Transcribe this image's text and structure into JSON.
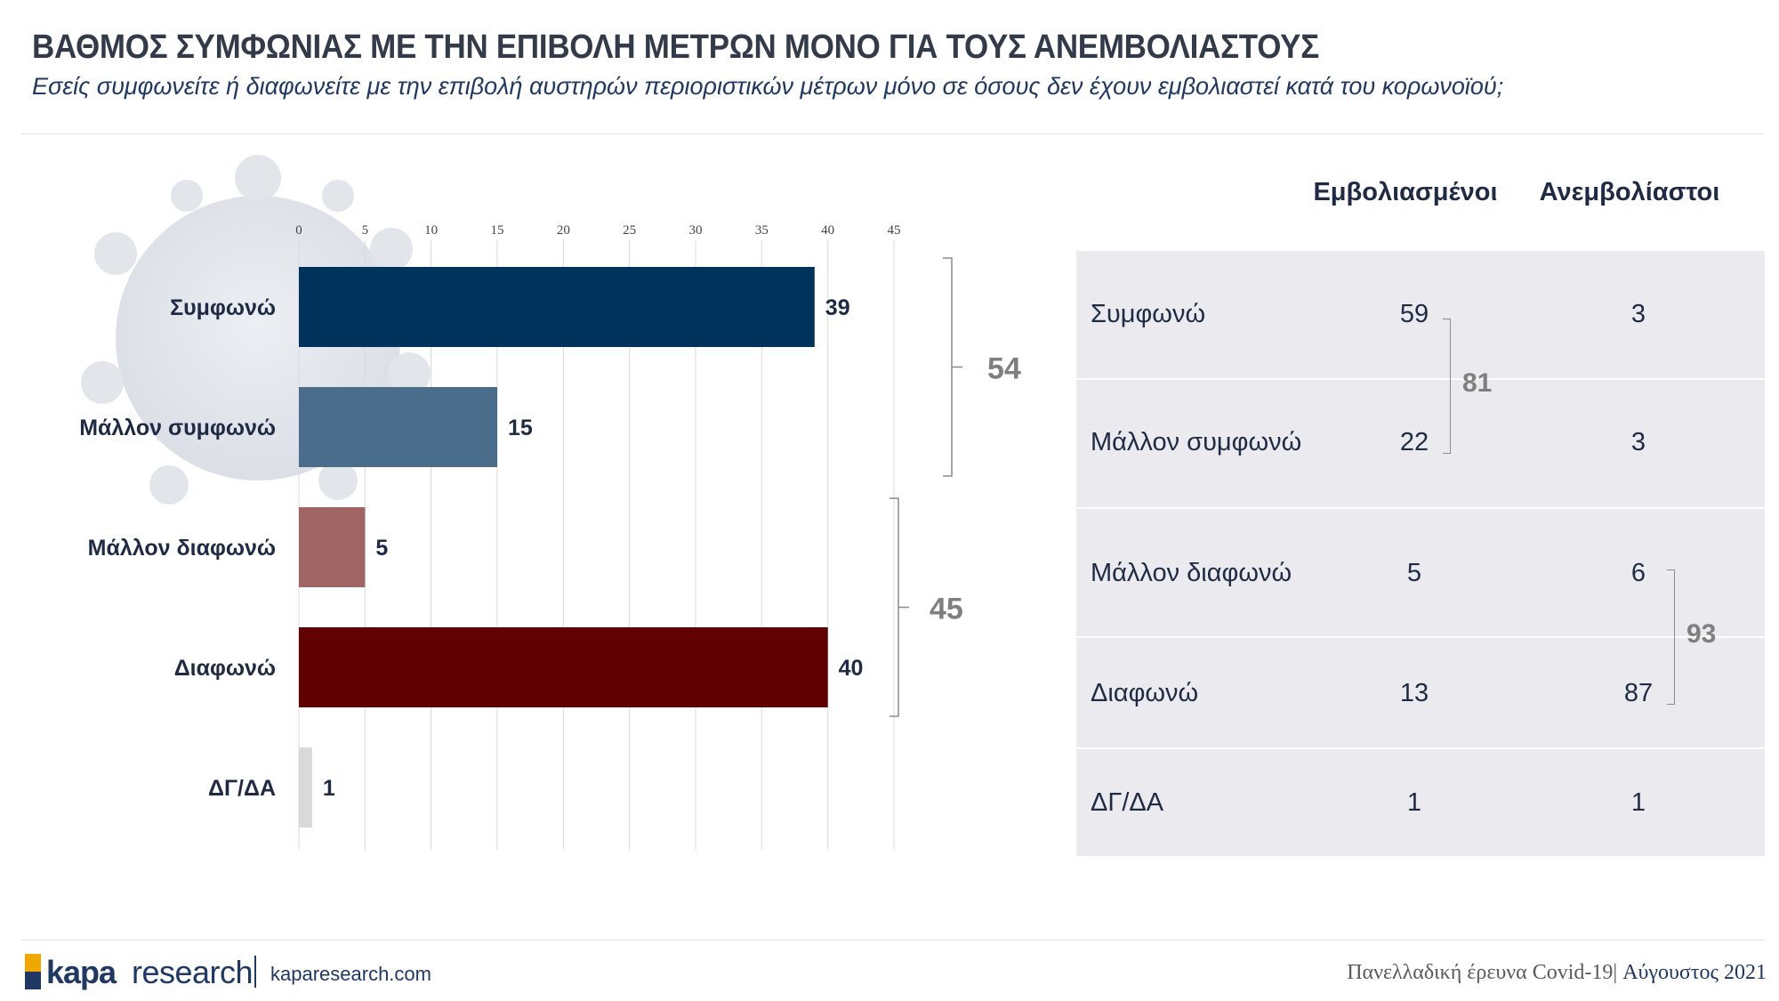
{
  "title": "ΒΑΘΜΟΣ ΣΥΜΦΩΝΙΑΣ ΜΕ ΤΗΝ ΕΠΙΒΟΛΗ ΜΕΤΡΩΝ ΜΟΝΟ ΓΙΑ ΤΟΥΣ ΑΝΕΜΒΟΛΙΑΣΤΟΥΣ",
  "subtitle": "Εσείς συμφωνείτε ή διαφωνείτε με την επιβολή αυστηρών περιοριστικών μέτρων μόνο σε όσους δεν έχουν εμβολιαστεί κατά του κορωνοϊού;",
  "chart_data": {
    "type": "bar",
    "orientation": "horizontal",
    "categories": [
      "Συμφωνώ",
      "Μάλλον συμφωνώ",
      "Μάλλον διαφωνώ",
      "Διαφωνώ",
      "ΔΓ/ΔΑ"
    ],
    "values": [
      39,
      15,
      5,
      40,
      1
    ],
    "colors": [
      "#00335c",
      "#4a6d8c",
      "#a06464",
      "#600000",
      "#d9d9d9"
    ],
    "xlim": [
      0,
      45
    ],
    "ticks": [
      0,
      5,
      10,
      15,
      20,
      25,
      30,
      35,
      40,
      45
    ],
    "grid": true,
    "groups": [
      {
        "label": "54",
        "from": 0,
        "to": 1
      },
      {
        "label": "45",
        "from": 2,
        "to": 3
      }
    ]
  },
  "table": {
    "headers": [
      "Εμβολιασμένοι",
      "Ανεμβολίαστοι"
    ],
    "rows": [
      {
        "label": "Συμφωνώ",
        "vaccinated": "59",
        "unvaccinated": "3"
      },
      {
        "label": "Μάλλον συμφωνώ",
        "vaccinated": "22",
        "unvaccinated": "3"
      },
      {
        "label": "Μάλλον διαφωνώ",
        "vaccinated": "5",
        "unvaccinated": "6"
      },
      {
        "label": "Διαφωνώ",
        "vaccinated": "13",
        "unvaccinated": "87"
      },
      {
        "label": "ΔΓ/ΔΑ",
        "vaccinated": "1",
        "unvaccinated": "1"
      }
    ],
    "vaccinated_agree_total": "81",
    "unvaccinated_disagree_total": "93"
  },
  "footer": {
    "logo_kapa": "kapa",
    "logo_research": "research",
    "site": "kaparesearch.com",
    "survey": "Πανελλαδική έρευνα Covid-19",
    "separator": "| ",
    "date": "Αύγουστος 2021"
  },
  "colors": {
    "accent": "#1f3864",
    "table_bg": "#ebebef",
    "brace": "#8c8c8c"
  }
}
